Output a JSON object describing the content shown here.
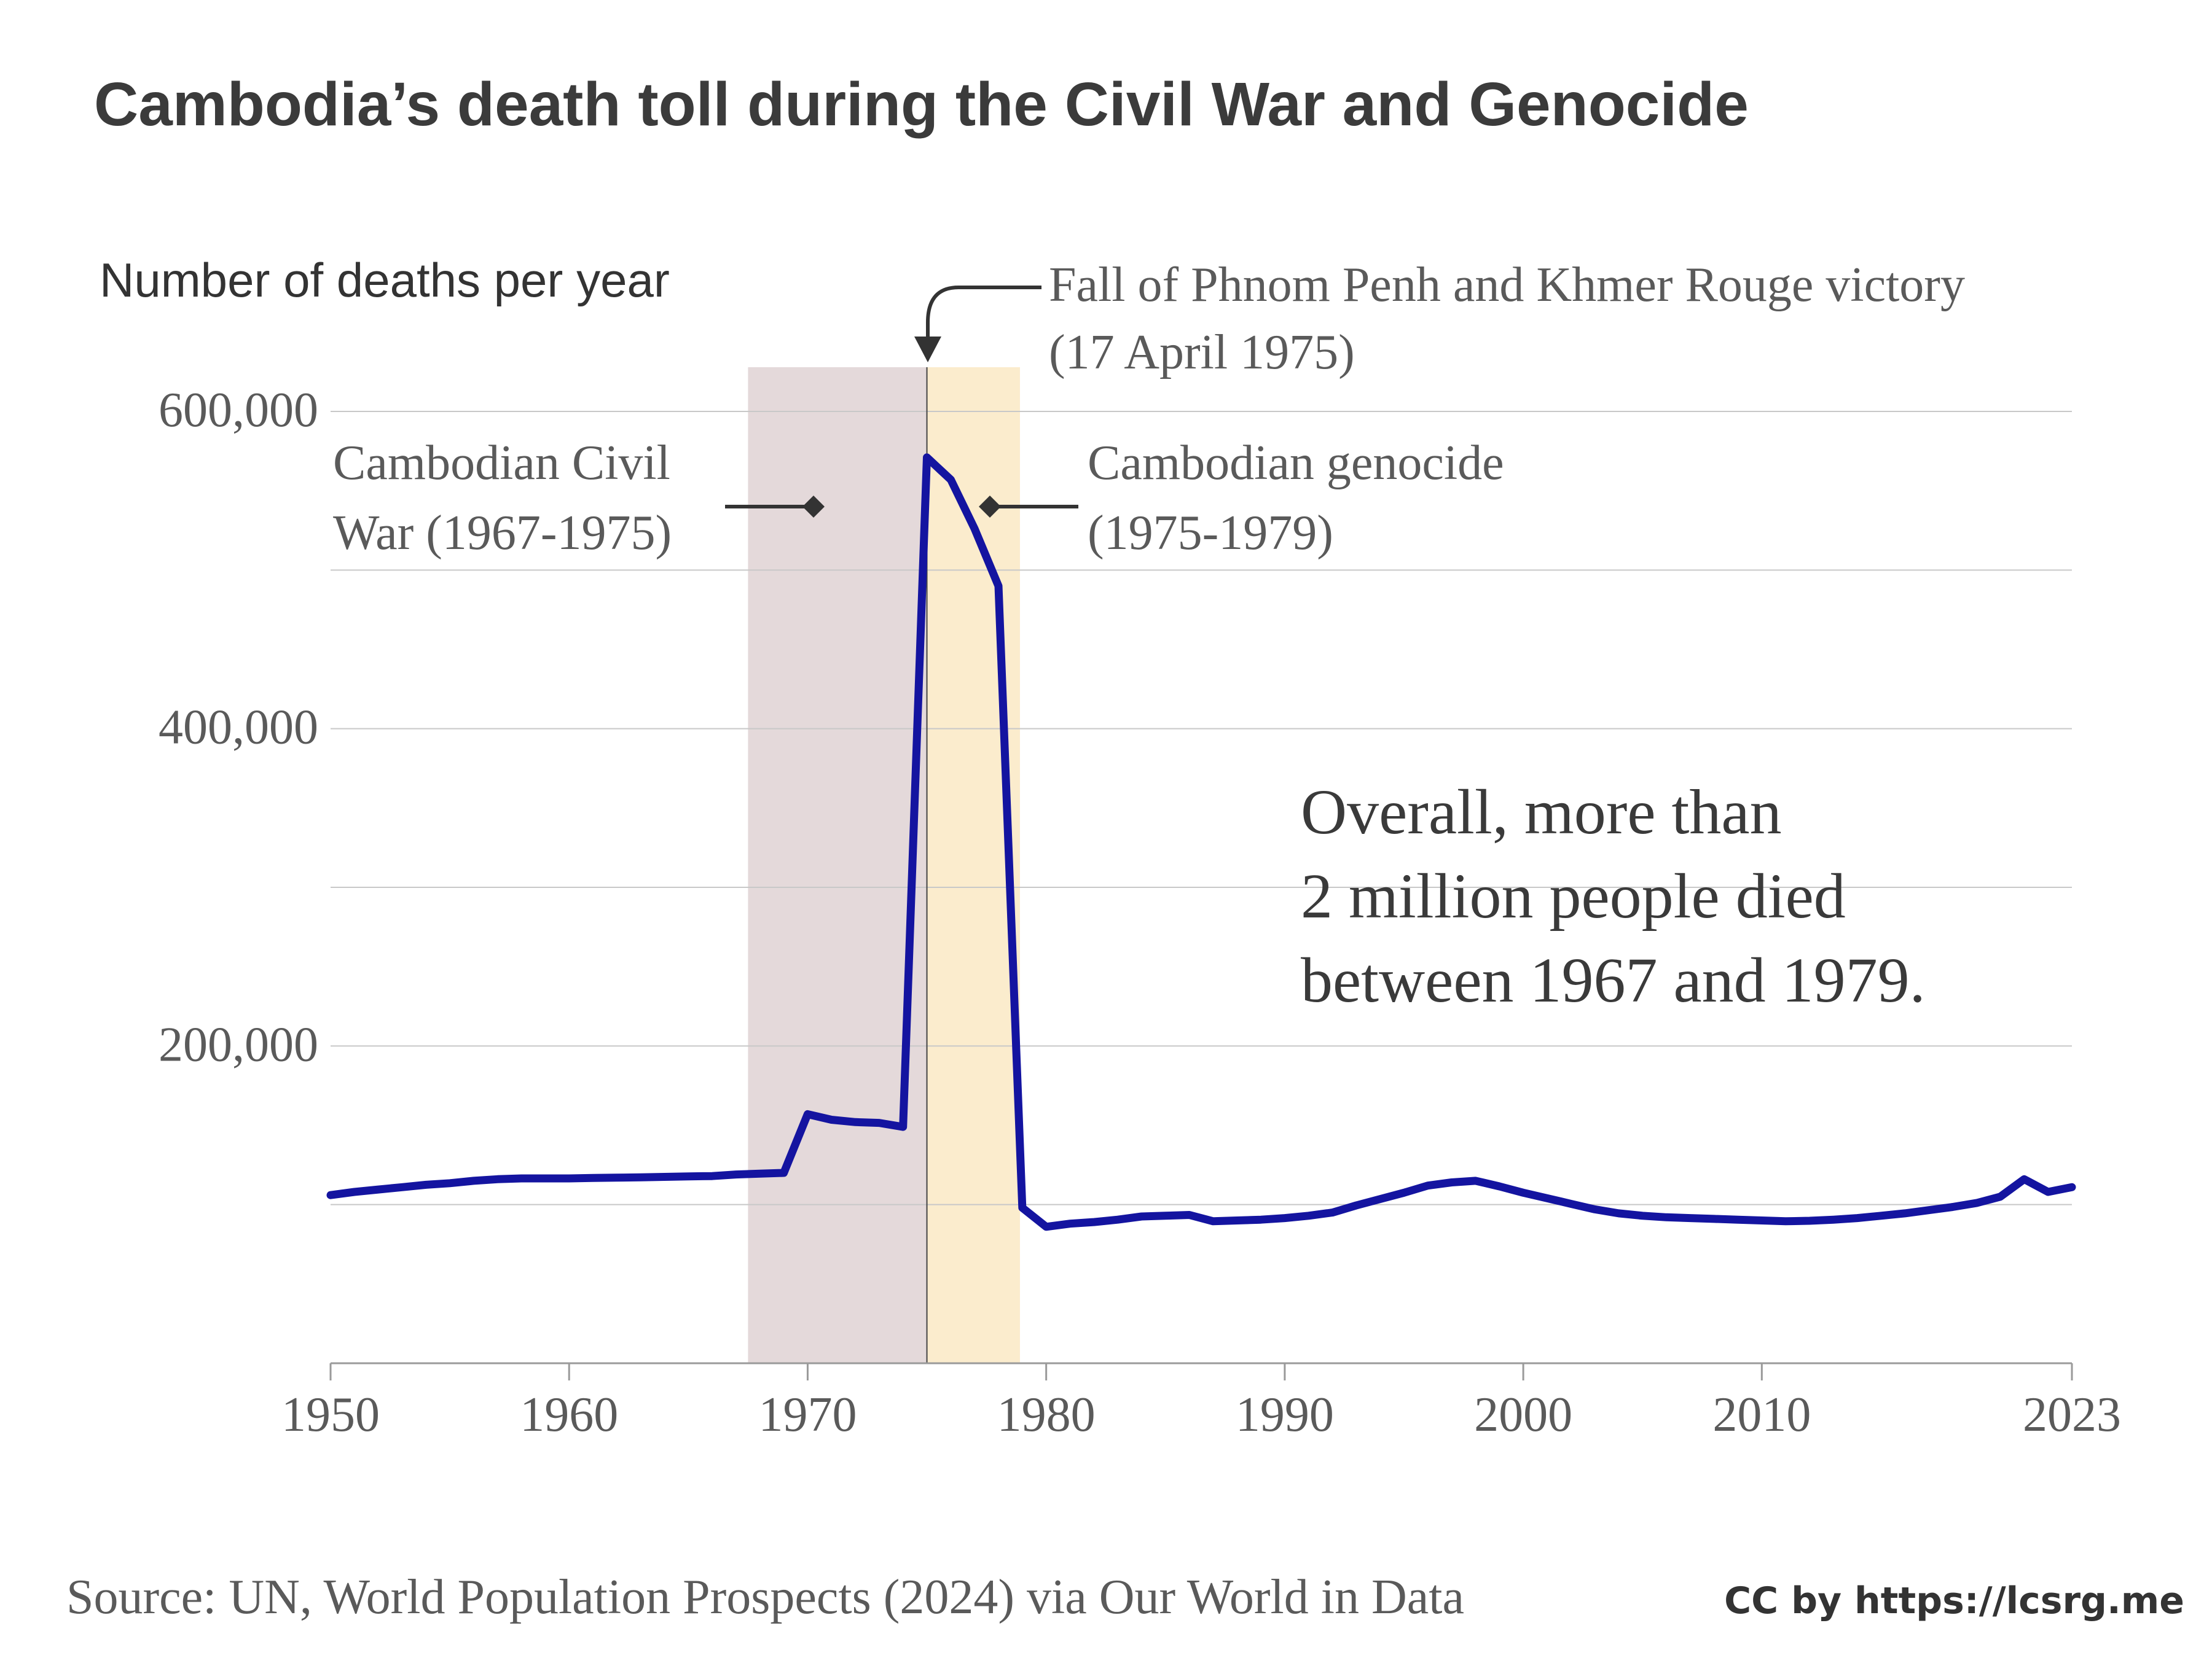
{
  "chart_data": {
    "type": "line",
    "title": "Cambodia’s death toll during the Civil War and Genocide",
    "ylabel": "Number of deaths per year",
    "xlabel": "",
    "xlim": [
      1950,
      2023
    ],
    "ylim": [
      0,
      600000
    ],
    "y_ticks": [
      {
        "value": 0,
        "label": ""
      },
      {
        "value": 100000,
        "label": ""
      },
      {
        "value": 200000,
        "label": "200,000"
      },
      {
        "value": 300000,
        "label": ""
      },
      {
        "value": 400000,
        "label": "400,000"
      },
      {
        "value": 500000,
        "label": ""
      },
      {
        "value": 600000,
        "label": "600,000"
      }
    ],
    "x_ticks": [
      {
        "value": 1950,
        "label": "1950"
      },
      {
        "value": 1960,
        "label": "1960"
      },
      {
        "value": 1970,
        "label": "1970"
      },
      {
        "value": 1980,
        "label": "1980"
      },
      {
        "value": 1990,
        "label": "1990"
      },
      {
        "value": 2000,
        "label": "2000"
      },
      {
        "value": 2010,
        "label": "2010"
      },
      {
        "value": 2023,
        "label": "2023"
      }
    ],
    "series": [
      {
        "name": "Number of deaths per year",
        "color": "#1414a0",
        "points": [
          [
            1950,
            106000
          ],
          [
            1951,
            108000
          ],
          [
            1952,
            109500
          ],
          [
            1953,
            111000
          ],
          [
            1954,
            112500
          ],
          [
            1955,
            113500
          ],
          [
            1956,
            115000
          ],
          [
            1957,
            116000
          ],
          [
            1958,
            116500
          ],
          [
            1959,
            116500
          ],
          [
            1960,
            116500
          ],
          [
            1961,
            116800
          ],
          [
            1962,
            117000
          ],
          [
            1963,
            117200
          ],
          [
            1964,
            117500
          ],
          [
            1965,
            117800
          ],
          [
            1966,
            118000
          ],
          [
            1967,
            119000
          ],
          [
            1968,
            119500
          ],
          [
            1969,
            120000
          ],
          [
            1970,
            157000
          ],
          [
            1971,
            153500
          ],
          [
            1972,
            152000
          ],
          [
            1973,
            151500
          ],
          [
            1974,
            149000
          ],
          [
            1975,
            571000
          ],
          [
            1976,
            557000
          ],
          [
            1977,
            526000
          ],
          [
            1978,
            490000
          ],
          [
            1979,
            98000
          ],
          [
            1980,
            86000
          ],
          [
            1981,
            88000
          ],
          [
            1982,
            89000
          ],
          [
            1983,
            90500
          ],
          [
            1984,
            92500
          ],
          [
            1985,
            93000
          ],
          [
            1986,
            93500
          ],
          [
            1987,
            89500
          ],
          [
            1988,
            90000
          ],
          [
            1989,
            90500
          ],
          [
            1990,
            91500
          ],
          [
            1991,
            93000
          ],
          [
            1992,
            95000
          ],
          [
            1993,
            99500
          ],
          [
            1994,
            103500
          ],
          [
            1995,
            107500
          ],
          [
            1996,
            112000
          ],
          [
            1997,
            114000
          ],
          [
            1998,
            115000
          ],
          [
            1999,
            111500
          ],
          [
            2000,
            107500
          ],
          [
            2001,
            104000
          ],
          [
            2002,
            100500
          ],
          [
            2003,
            97000
          ],
          [
            2004,
            94500
          ],
          [
            2005,
            93000
          ],
          [
            2006,
            92000
          ],
          [
            2007,
            91500
          ],
          [
            2008,
            91000
          ],
          [
            2009,
            90500
          ],
          [
            2010,
            90000
          ],
          [
            2011,
            89500
          ],
          [
            2012,
            89800
          ],
          [
            2013,
            90500
          ],
          [
            2014,
            91500
          ],
          [
            2015,
            93000
          ],
          [
            2016,
            94500
          ],
          [
            2017,
            96500
          ],
          [
            2018,
            98500
          ],
          [
            2019,
            101000
          ],
          [
            2020,
            105000
          ],
          [
            2021,
            116000
          ],
          [
            2022,
            108000
          ],
          [
            2023,
            111000
          ]
        ]
      }
    ],
    "shaded_periods": [
      {
        "name": "civil-war",
        "start": 1967.5,
        "end": 1975,
        "color": "#e4d9da"
      },
      {
        "name": "genocide",
        "start": 1975,
        "end": 1978.9,
        "color": "#fbeccd"
      }
    ],
    "marker_year": 1975,
    "annotations": {
      "civil_war": [
        "Cambodian Civil",
        "War (1967-1975)"
      ],
      "genocide": [
        "Cambodian genocide",
        "(1975-1979)"
      ],
      "fall": [
        "Fall of Phnom Penh and Khmer Rouge victory",
        "(17 April 1975)"
      ],
      "summary": [
        "Overall, more than",
        "2 million people died",
        "between 1967 and 1979."
      ]
    },
    "source": "Source: UN, World Population Prospects (2024) via Our World in Data",
    "credit": "CC by https://lcsrg.me"
  }
}
